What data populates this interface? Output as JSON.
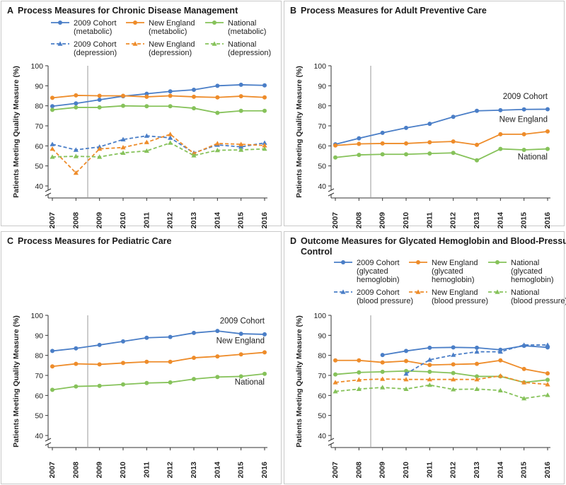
{
  "colors": {
    "cohort": "#4a7ec7",
    "new_england": "#ee8c2a",
    "national": "#86c25a",
    "frame": "#c9c9c9",
    "axis": "#333333",
    "divider": "#999999"
  },
  "chart_data": [
    {
      "id": "A",
      "type": "line",
      "letter": "A",
      "title": "Process Measures for Chronic Disease Management",
      "ylabel": "Patients Meeting Quality Measure (%)",
      "categories": [
        "2007",
        "2008",
        "2009",
        "2010",
        "2011",
        "2012",
        "2013",
        "2014",
        "2015",
        "2016"
      ],
      "ylim": [
        40,
        100
      ],
      "yticks": [
        "40",
        "50",
        "60",
        "70",
        "80",
        "90",
        "100"
      ],
      "divider_after_year": "2008",
      "legend": "top",
      "series": [
        {
          "name": "2009 Cohort (metabolic)",
          "label_lines": [
            "2009 Cohort",
            "(metabolic)"
          ],
          "group": "cohort",
          "dashed": false,
          "marker": "circle",
          "values": [
            79.8,
            81.2,
            83.0,
            84.8,
            86.0,
            87.2,
            88.0,
            90.0,
            90.5,
            90.2
          ]
        },
        {
          "name": "New England (metabolic)",
          "label_lines": [
            "New England",
            "(metabolic)"
          ],
          "group": "new_england",
          "dashed": false,
          "marker": "circle",
          "values": [
            84.0,
            85.2,
            85.0,
            85.0,
            84.5,
            85.0,
            84.5,
            84.2,
            84.8,
            84.2
          ]
        },
        {
          "name": "National (metabolic)",
          "label_lines": [
            "National",
            "(metabolic)"
          ],
          "group": "national",
          "dashed": false,
          "marker": "circle",
          "values": [
            78.0,
            79.2,
            79.2,
            80.0,
            79.8,
            79.8,
            78.8,
            76.5,
            77.5,
            77.5
          ]
        },
        {
          "name": "2009 Cohort (depression)",
          "label_lines": [
            "2009 Cohort",
            "(depression)"
          ],
          "group": "cohort",
          "dashed": true,
          "marker": "triangle",
          "values": [
            60.8,
            58.0,
            59.5,
            63.2,
            65.0,
            64.0,
            56.5,
            60.5,
            59.5,
            61.5
          ]
        },
        {
          "name": "New England (depression)",
          "label_lines": [
            "New England",
            "(depression)"
          ],
          "group": "new_england",
          "dashed": true,
          "marker": "triangle",
          "values": [
            58.5,
            46.5,
            58.5,
            59.2,
            61.8,
            65.8,
            56.2,
            61.2,
            60.8,
            60.2
          ]
        },
        {
          "name": "National (depression)",
          "label_lines": [
            "National",
            "(depression)"
          ],
          "group": "national",
          "dashed": true,
          "marker": "triangle",
          "values": [
            54.5,
            54.8,
            54.5,
            56.5,
            57.5,
            61.5,
            55.2,
            57.8,
            58.0,
            58.5
          ]
        }
      ],
      "direct_labels": []
    },
    {
      "id": "B",
      "type": "line",
      "letter": "B",
      "title": "Process Measures for Adult Preventive Care",
      "ylabel": "Patients Meeting Quality Measure (%)",
      "categories": [
        "2007",
        "2008",
        "2009",
        "2010",
        "2011",
        "2012",
        "2013",
        "2014",
        "2015",
        "2016"
      ],
      "ylim": [
        40,
        100
      ],
      "yticks": [
        "40",
        "50",
        "60",
        "70",
        "80",
        "90",
        "100"
      ],
      "divider_after_year": "2008",
      "legend": "none",
      "series": [
        {
          "name": "2009 Cohort",
          "group": "cohort",
          "dashed": false,
          "marker": "circle",
          "values": [
            60.8,
            63.8,
            66.5,
            69.0,
            71.0,
            74.5,
            77.5,
            77.8,
            78.2,
            78.3
          ]
        },
        {
          "name": "New England",
          "group": "new_england",
          "dashed": false,
          "marker": "circle",
          "values": [
            60.2,
            61.0,
            61.2,
            61.2,
            61.8,
            62.2,
            60.5,
            65.8,
            65.8,
            67.2
          ]
        },
        {
          "name": "National",
          "group": "national",
          "dashed": false,
          "marker": "circle",
          "values": [
            54.2,
            55.5,
            55.8,
            55.8,
            56.2,
            56.5,
            52.8,
            58.5,
            58.0,
            58.5
          ]
        }
      ],
      "direct_labels": [
        {
          "text": "2009 Cohort",
          "anchor_year": "2016",
          "value": 83.5,
          "align": "end"
        },
        {
          "text": "New England",
          "anchor_year": "2016",
          "value": 72.0,
          "align": "end"
        },
        {
          "text": "National",
          "anchor_year": "2016",
          "value": 53.2,
          "align": "end"
        }
      ]
    },
    {
      "id": "C",
      "type": "line",
      "letter": "C",
      "title": "Process Measures for Pediatric Care",
      "ylabel": "Patients Meeting Quality Measure (%)",
      "categories": [
        "2007",
        "2008",
        "2009",
        "2010",
        "2011",
        "2012",
        "2013",
        "2014",
        "2015",
        "2016"
      ],
      "ylim": [
        40,
        100
      ],
      "yticks": [
        "40",
        "50",
        "60",
        "70",
        "80",
        "90",
        "100"
      ],
      "divider_after_year": "2008",
      "legend": "none",
      "series": [
        {
          "name": "2009 Cohort",
          "group": "cohort",
          "dashed": false,
          "marker": "circle",
          "values": [
            82.2,
            83.5,
            85.2,
            87.0,
            88.8,
            89.2,
            91.2,
            92.2,
            90.8,
            90.5
          ]
        },
        {
          "name": "New England",
          "group": "new_england",
          "dashed": false,
          "marker": "circle",
          "values": [
            74.5,
            75.8,
            75.5,
            76.2,
            76.8,
            76.8,
            78.8,
            79.5,
            80.5,
            81.5
          ]
        },
        {
          "name": "National",
          "group": "national",
          "dashed": false,
          "marker": "circle",
          "values": [
            62.8,
            64.5,
            64.8,
            65.5,
            66.2,
            66.5,
            68.2,
            69.2,
            69.5,
            70.8
          ]
        }
      ],
      "direct_labels": [
        {
          "text": "2009 Cohort",
          "anchor_year": "2016",
          "value": 96.0,
          "align": "end"
        },
        {
          "text": "New England",
          "anchor_year": "2016",
          "value": 86.0,
          "align": "end"
        },
        {
          "text": "National",
          "anchor_year": "2016",
          "value": 65.5,
          "align": "end"
        }
      ]
    },
    {
      "id": "D",
      "type": "line",
      "letter": "D",
      "title": "Outcome Measures for Glycated Hemoglobin and Blood-Pressure Control",
      "title_lines": [
        "Outcome Measures for Glycated Hemoglobin and Blood-Pressure",
        "Control"
      ],
      "ylabel": "Patients Meeting Quality Measure (%)",
      "categories": [
        "2007",
        "2008",
        "2009",
        "2010",
        "2011",
        "2012",
        "2013",
        "2014",
        "2015",
        "2016"
      ],
      "ylim": [
        40,
        100
      ],
      "yticks": [
        "40",
        "50",
        "60",
        "70",
        "80",
        "90",
        "100"
      ],
      "divider_after_year": "2008",
      "legend": "top",
      "series": [
        {
          "name": "2009 Cohort (glycated hemoglobin)",
          "label_lines": [
            "2009 Cohort",
            "(glycated",
            "hemoglobin)"
          ],
          "group": "cohort",
          "dashed": false,
          "marker": "circle",
          "values": [
            null,
            null,
            80.2,
            82.2,
            83.8,
            84.0,
            83.8,
            82.8,
            84.8,
            84.0
          ]
        },
        {
          "name": "New England (glycated hemoglobin)",
          "label_lines": [
            "New England",
            "(glycated",
            "hemoglobin)"
          ],
          "group": "new_england",
          "dashed": false,
          "marker": "circle",
          "values": [
            77.5,
            77.5,
            76.5,
            77.2,
            75.2,
            75.5,
            75.8,
            77.5,
            73.2,
            71.0
          ]
        },
        {
          "name": "National (glycated hemoglobin)",
          "label_lines": [
            "National",
            "(glycated",
            "hemoglobin)"
          ],
          "group": "national",
          "dashed": false,
          "marker": "circle",
          "values": [
            70.5,
            71.5,
            71.8,
            72.2,
            71.8,
            71.2,
            69.5,
            69.5,
            66.5,
            67.8
          ]
        },
        {
          "name": "2009 Cohort (blood pressure)",
          "label_lines": [
            "2009 Cohort",
            "(blood pressure)"
          ],
          "group": "cohort",
          "dashed": true,
          "marker": "triangle",
          "values": [
            null,
            null,
            null,
            70.8,
            77.8,
            80.2,
            81.8,
            81.8,
            85.2,
            85.2
          ]
        },
        {
          "name": "New England (blood pressure)",
          "label_lines": [
            "New England",
            "(blood pressure)"
          ],
          "group": "new_england",
          "dashed": true,
          "marker": "triangle",
          "values": [
            66.5,
            67.8,
            68.2,
            68.0,
            68.0,
            68.0,
            68.0,
            69.8,
            66.5,
            65.5
          ]
        },
        {
          "name": "National (blood pressure)",
          "label_lines": [
            "National",
            "(blood pressure)"
          ],
          "group": "national",
          "dashed": true,
          "marker": "triangle",
          "values": [
            62.0,
            63.2,
            64.0,
            63.2,
            65.2,
            63.0,
            63.2,
            62.5,
            58.5,
            60.2
          ]
        }
      ],
      "direct_labels": []
    }
  ]
}
